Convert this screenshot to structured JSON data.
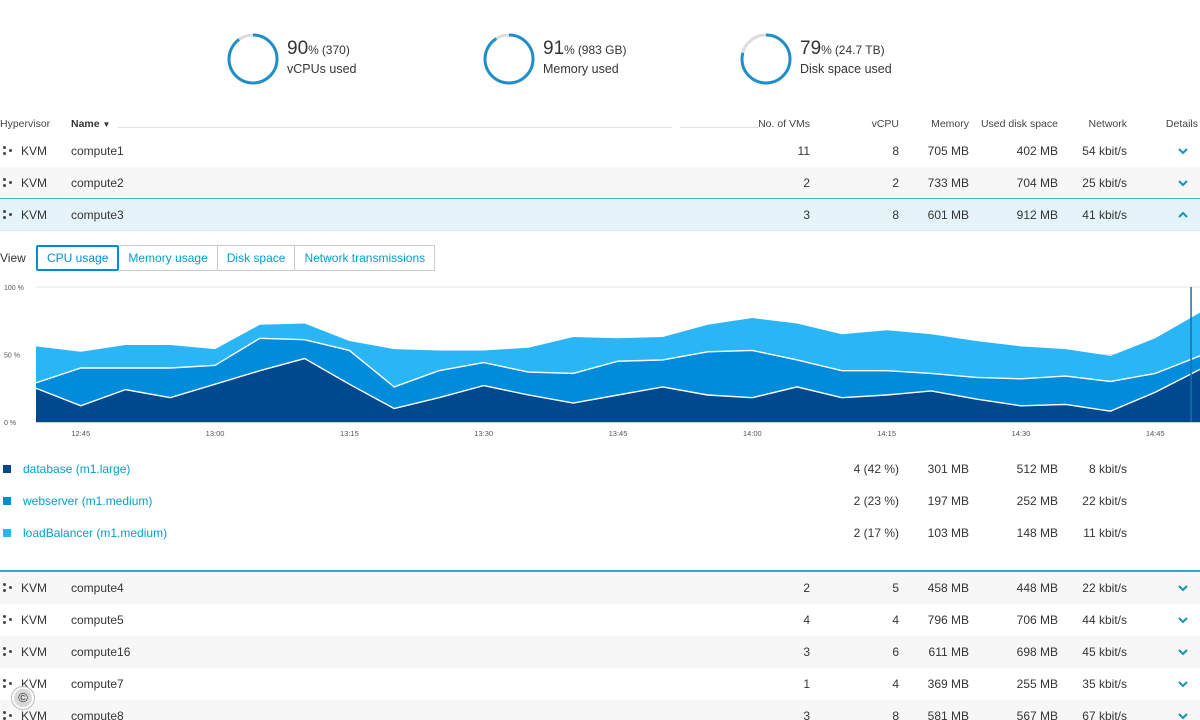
{
  "summary": [
    {
      "value": "90",
      "unit": "%",
      "abs": "(370)",
      "label": "vCPUs used",
      "fraction": 0.9
    },
    {
      "value": "91",
      "unit": "%",
      "abs": "(983 GB)",
      "label": "Memory used",
      "fraction": 0.91
    },
    {
      "value": "79",
      "unit": "%",
      "abs": "(24.7 TB)",
      "label": "Disk space used",
      "fraction": 0.79
    }
  ],
  "table": {
    "headers": {
      "hypervisor": "Hypervisor",
      "name": "Name",
      "sort_icon": "▼",
      "vms": "No. of VMs",
      "vcpu": "vCPU",
      "memory": "Memory",
      "disk": "Used disk space",
      "network": "Network",
      "details": "Details"
    },
    "rows": [
      {
        "hypervisor": "KVM",
        "name": "compute1",
        "vms": "11",
        "vcpu": "8",
        "memory": "705 MB",
        "disk": "402 MB",
        "network": "54 kbit/s"
      },
      {
        "hypervisor": "KVM",
        "name": "compute2",
        "vms": "2",
        "vcpu": "2",
        "memory": "733 MB",
        "disk": "704 MB",
        "network": "25 kbit/s"
      },
      {
        "hypervisor": "KVM",
        "name": "compute3",
        "vms": "3",
        "vcpu": "8",
        "memory": "601 MB",
        "disk": "912 MB",
        "network": "41 kbit/s"
      }
    ],
    "rows_after": [
      {
        "hypervisor": "KVM",
        "name": "compute4",
        "vms": "2",
        "vcpu": "5",
        "memory": "458 MB",
        "disk": "448 MB",
        "network": "22 kbit/s"
      },
      {
        "hypervisor": "KVM",
        "name": "compute5",
        "vms": "4",
        "vcpu": "4",
        "memory": "796 MB",
        "disk": "706 MB",
        "network": "44 kbit/s"
      },
      {
        "hypervisor": "KVM",
        "name": "compute16",
        "vms": "3",
        "vcpu": "6",
        "memory": "611 MB",
        "disk": "698 MB",
        "network": "45 kbit/s"
      },
      {
        "hypervisor": "KVM",
        "name": "compute7",
        "vms": "1",
        "vcpu": "4",
        "memory": "369 MB",
        "disk": "255 MB",
        "network": "35 kbit/s"
      },
      {
        "hypervisor": "KVM",
        "name": "compute8",
        "vms": "3",
        "vcpu": "8",
        "memory": "581 MB",
        "disk": "567 MB",
        "network": "67 kbit/s"
      }
    ]
  },
  "detail": {
    "view_label": "View",
    "tabs": [
      "CPU usage",
      "Memory usage",
      "Disk space",
      "Network transmissions"
    ],
    "active_tab": 0,
    "vms": [
      {
        "name": "database (m1.large)",
        "vcpu": "4 (42 %)",
        "memory": "301 MB",
        "disk": "512 MB",
        "network": "8 kbit/s",
        "color": "#00498f"
      },
      {
        "name": "webserver (m1.medium)",
        "vcpu": "2 (23 %)",
        "memory": "197 MB",
        "disk": "252 MB",
        "network": "22 kbit/s",
        "color": "#008cdb"
      },
      {
        "name": "loadBalancer (m1.medium)",
        "vcpu": "2 (17 %)",
        "memory": "103 MB",
        "disk": "148 MB",
        "network": "11 kbit/s",
        "color": "#2ab6f4"
      }
    ]
  },
  "chart_data": {
    "type": "area",
    "stacked": true,
    "ylim": [
      0,
      100
    ],
    "y_ticks": [
      "0 %",
      "50 %",
      "100 %"
    ],
    "x_ticks": [
      "12:45",
      "13:00",
      "13:15",
      "13:30",
      "13:45",
      "14:00",
      "14:15",
      "14:30",
      "14:45"
    ],
    "x_tick_minutes": [
      765,
      780,
      795,
      810,
      825,
      840,
      855,
      870,
      885
    ],
    "x": [
      760,
      765,
      770,
      775,
      780,
      785,
      790,
      795,
      800,
      805,
      810,
      815,
      820,
      825,
      830,
      835,
      840,
      845,
      850,
      855,
      860,
      865,
      870,
      875,
      880,
      885,
      890
    ],
    "series": [
      {
        "name": "database (m1.large)",
        "color": "#00498f",
        "values": [
          25,
          12,
          24,
          18,
          28,
          38,
          47,
          28,
          10,
          18,
          27,
          20,
          14,
          20,
          26,
          20,
          18,
          26,
          18,
          20,
          23,
          17,
          12,
          13,
          8,
          22,
          39
        ]
      },
      {
        "name": "webserver (m1.medium)",
        "color": "#008cdb",
        "values": [
          4,
          28,
          16,
          22,
          14,
          24,
          14,
          25,
          16,
          20,
          17,
          17,
          22,
          25,
          20,
          32,
          35,
          20,
          20,
          18,
          13,
          16,
          20,
          21,
          22,
          14,
          10
        ]
      },
      {
        "name": "loadBalancer (m1.medium)",
        "color": "#2ab6f4",
        "values": [
          27,
          12,
          17,
          17,
          12,
          10,
          12,
          7,
          28,
          15,
          9,
          18,
          27,
          17,
          17,
          20,
          24,
          27,
          27,
          30,
          29,
          27,
          24,
          20,
          19,
          26,
          32
        ]
      }
    ],
    "cursor_line_minutes": 889
  }
}
